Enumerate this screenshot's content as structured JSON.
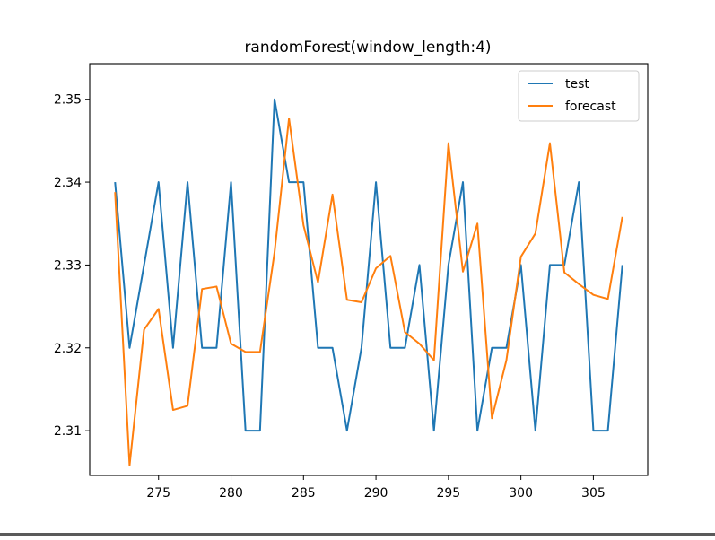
{
  "chart_data": {
    "type": "line",
    "title": "randomForest(window_length:4)",
    "xlabel": "",
    "ylabel": "",
    "xlim": [
      270.25,
      308.75
    ],
    "ylim": [
      2.3046,
      2.3543
    ],
    "x_ticks": [
      275,
      280,
      285,
      290,
      295,
      300,
      305
    ],
    "y_ticks": [
      2.31,
      2.32,
      2.33,
      2.34,
      2.35
    ],
    "y_tick_labels": [
      "2.31",
      "2.32",
      "2.33",
      "2.34",
      "2.35"
    ],
    "x_tick_labels": [
      "275",
      "280",
      "285",
      "290",
      "295",
      "300",
      "305"
    ],
    "grid": false,
    "legend_position": "upper right",
    "x": [
      272,
      273,
      274,
      275,
      276,
      277,
      278,
      279,
      280,
      281,
      282,
      283,
      284,
      285,
      286,
      287,
      288,
      289,
      290,
      291,
      292,
      293,
      294,
      295,
      296,
      297,
      298,
      299,
      300,
      301,
      302,
      303,
      304,
      305,
      306,
      307
    ],
    "series": [
      {
        "name": "test",
        "color": "#1f77b4",
        "values": [
          2.34,
          2.32,
          2.33,
          2.34,
          2.32,
          2.34,
          2.32,
          2.32,
          2.34,
          2.31,
          2.31,
          2.35,
          2.34,
          2.34,
          2.32,
          2.32,
          2.31,
          2.32,
          2.34,
          2.32,
          2.32,
          2.33,
          2.31,
          2.33,
          2.34,
          2.31,
          2.32,
          2.32,
          2.33,
          2.31,
          2.33,
          2.33,
          2.34,
          2.31,
          2.31,
          2.33
        ]
      },
      {
        "name": "forecast",
        "color": "#ff7f0e",
        "values": [
          2.3388,
          2.3058,
          2.3222,
          2.3247,
          2.3125,
          2.313,
          2.3271,
          2.3274,
          2.3205,
          2.3195,
          2.3195,
          2.3315,
          2.3477,
          2.3348,
          2.3279,
          2.3385,
          2.3258,
          2.3255,
          2.3296,
          2.3311,
          2.3219,
          2.3205,
          2.3185,
          2.3447,
          2.3292,
          2.335,
          2.3115,
          2.3185,
          2.331,
          2.3338,
          2.3447,
          2.3291,
          2.3277,
          2.3264,
          2.3259,
          2.3358
        ]
      }
    ]
  }
}
